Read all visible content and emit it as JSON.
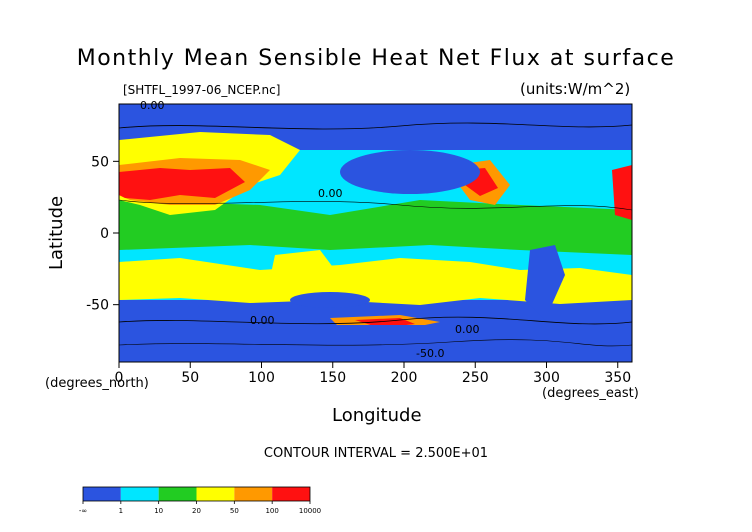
{
  "chart_data": {
    "type": "heatmap",
    "title": "Monthly Mean Sensible Heat Net Flux at surface",
    "subtitle_left": "[SHTFL_1997-06_NCEP.nc]",
    "subtitle_right": "(units:W/m^2)",
    "xlabel": "Longitude",
    "ylabel": "Latitude",
    "x_units": "(degrees_east)",
    "y_units": "(degrees_north)",
    "x_ticks": [
      0,
      50,
      100,
      150,
      200,
      250,
      300,
      350
    ],
    "y_ticks": [
      50,
      0,
      -50
    ],
    "xlim": [
      0,
      360
    ],
    "ylim": [
      -90,
      90
    ],
    "contour_interval_text": "CONTOUR INTERVAL = 2.500E+01",
    "contour_labels": [
      "0.00",
      "0.00",
      "0.00",
      "0.00",
      "-50.0"
    ],
    "colorbar": {
      "tick_labels": [
        "-∞",
        "1",
        "10",
        "20",
        "50",
        "100",
        "10000"
      ],
      "colors": [
        "#2b54e0",
        "#00e6ff",
        "#22cc22",
        "#ffff00",
        "#ff9900",
        "#ff1111"
      ]
    }
  }
}
